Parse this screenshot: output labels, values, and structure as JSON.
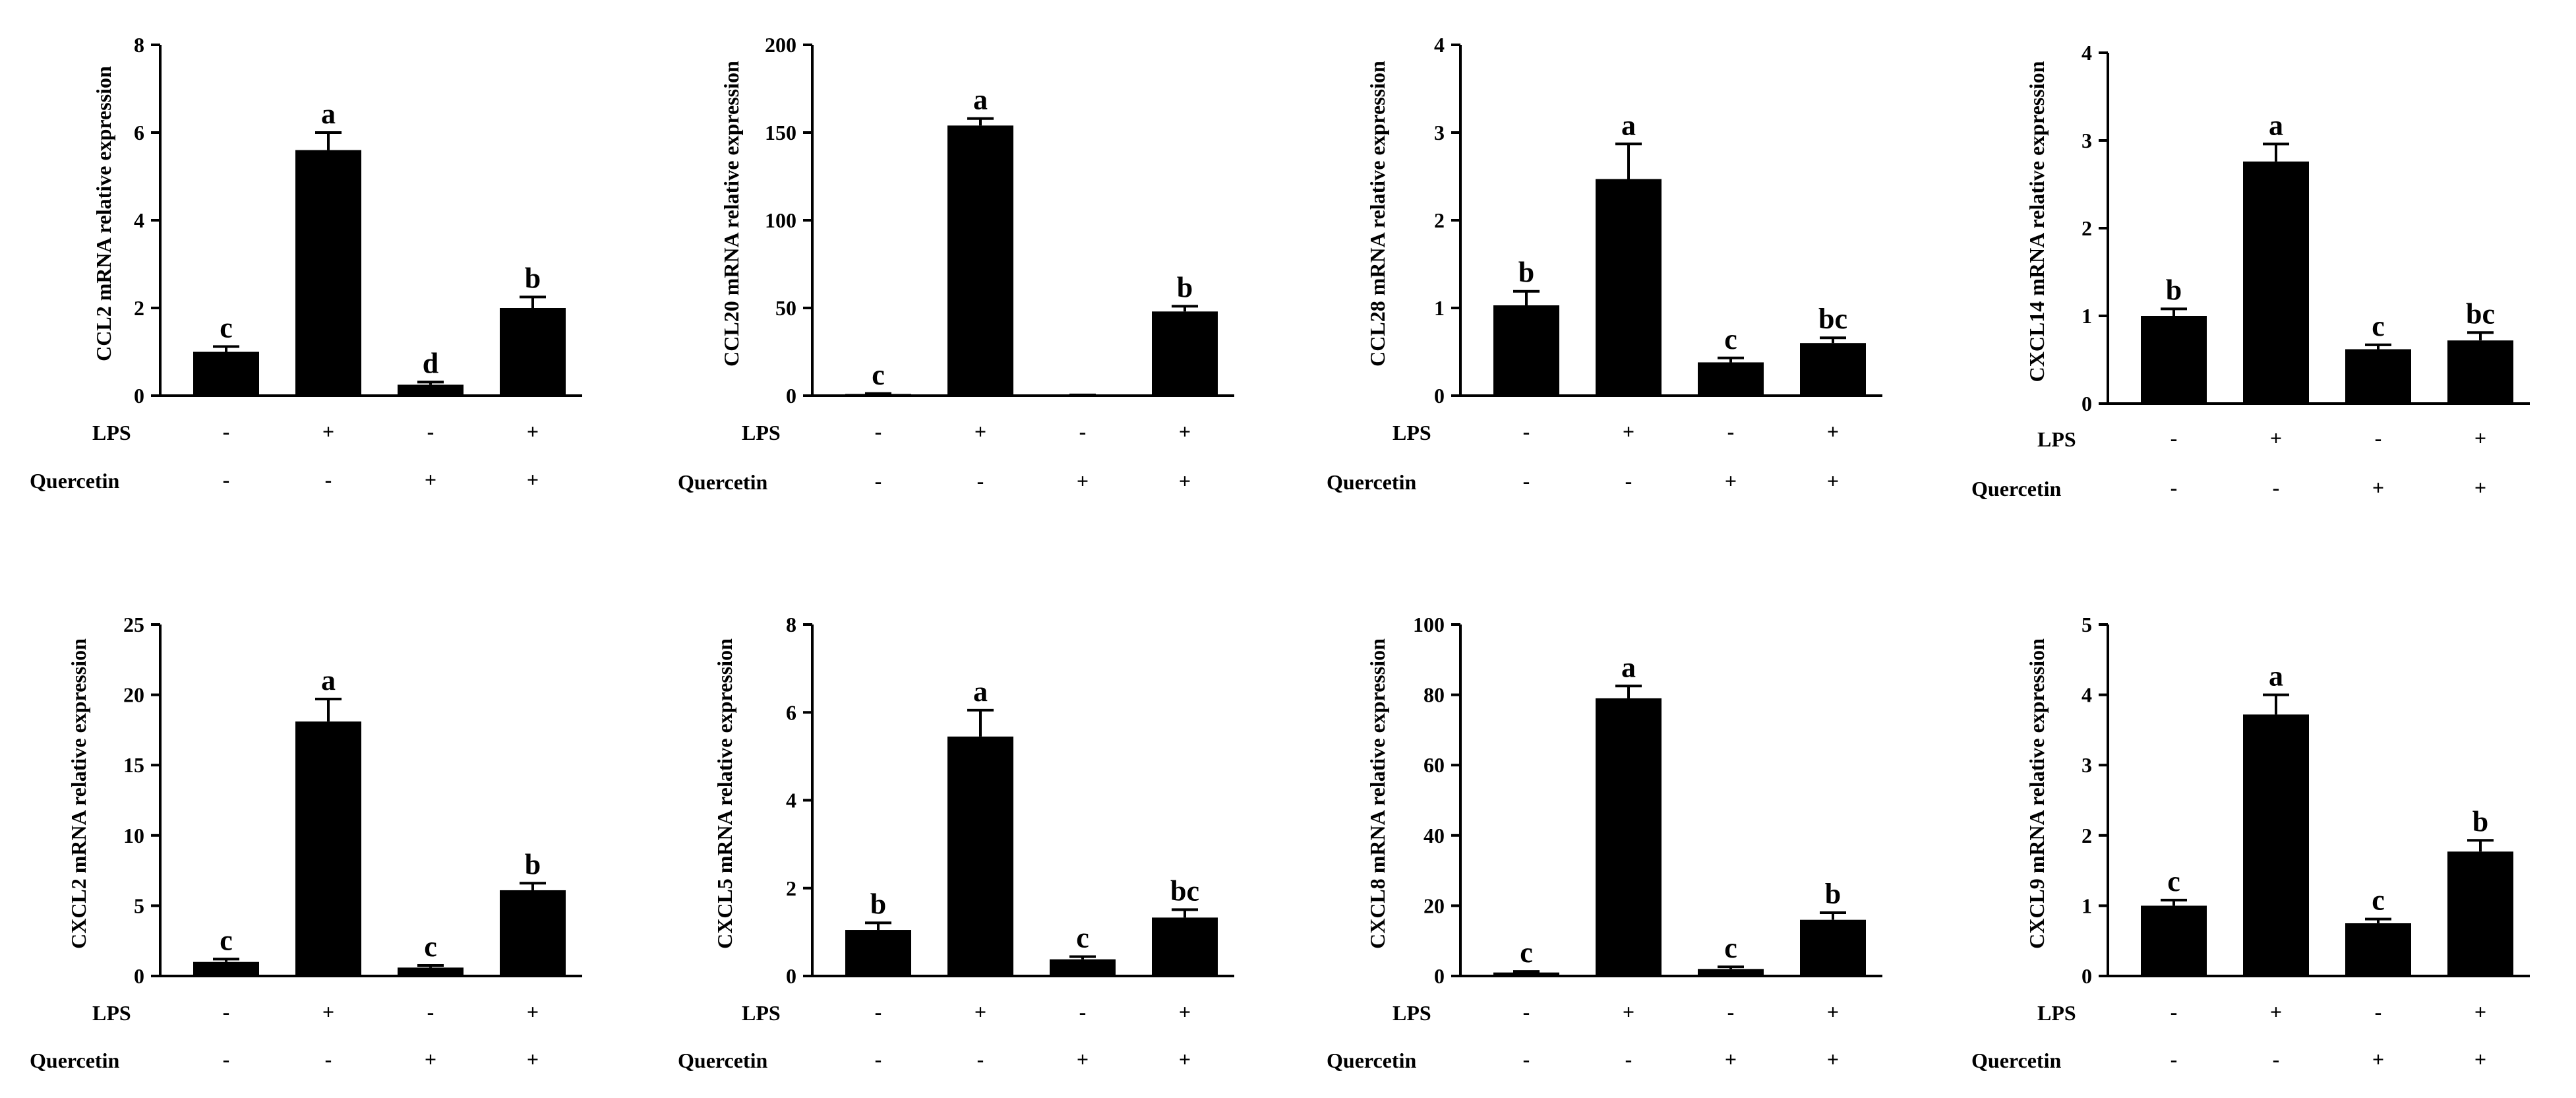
{
  "chart_data": [
    {
      "type": "bar",
      "ylabel": "CCL2 mRNA relative expression",
      "ylim": [
        0,
        8
      ],
      "yticks": [
        0,
        2,
        4,
        6,
        8
      ],
      "values": [
        1.0,
        5.6,
        0.25,
        2.0
      ],
      "errors": [
        0.12,
        0.4,
        0.06,
        0.25
      ],
      "letters": [
        "c",
        "a",
        "d",
        "b"
      ],
      "lps": [
        "-",
        "+",
        "-",
        "+"
      ],
      "quercetin": [
        "-",
        "-",
        "+",
        "+"
      ]
    },
    {
      "type": "bar",
      "ylabel": "CCL20 mRNA relative expression",
      "ylim": [
        0,
        200
      ],
      "yticks": [
        0,
        50,
        100,
        150,
        200
      ],
      "values": [
        1.0,
        154,
        0.3,
        48
      ],
      "errors": [
        0.2,
        4,
        0.1,
        3
      ],
      "letters": [
        "c",
        "a",
        "",
        "b"
      ],
      "lps": [
        "-",
        "+",
        "-",
        "+"
      ],
      "quercetin": [
        "-",
        "-",
        "+",
        "+"
      ]
    },
    {
      "type": "bar",
      "ylabel": "CCL28 mRNA relative expression",
      "ylim": [
        0,
        4
      ],
      "yticks": [
        0,
        1,
        2,
        3,
        4
      ],
      "values": [
        1.03,
        2.47,
        0.38,
        0.6
      ],
      "errors": [
        0.16,
        0.4,
        0.05,
        0.06
      ],
      "letters": [
        "b",
        "a",
        "c",
        "bc"
      ],
      "lps": [
        "-",
        "+",
        "-",
        "+"
      ],
      "quercetin": [
        "-",
        "-",
        "+",
        "+"
      ]
    },
    {
      "type": "bar",
      "ylabel": "CXCL14 mRNA relative expression",
      "ylim": [
        0,
        4
      ],
      "yticks": [
        0,
        1,
        2,
        3,
        4
      ],
      "values": [
        1.0,
        2.76,
        0.62,
        0.72
      ],
      "errors": [
        0.08,
        0.2,
        0.05,
        0.09
      ],
      "letters": [
        "b",
        "a",
        "c",
        "bc"
      ],
      "lps": [
        "-",
        "+",
        "-",
        "+"
      ],
      "quercetin": [
        "-",
        "-",
        "+",
        "+"
      ]
    },
    {
      "type": "bar",
      "ylabel": "CXCL2 mRNA relative expression",
      "ylim": [
        0,
        25
      ],
      "yticks": [
        0,
        5,
        10,
        15,
        20,
        25
      ],
      "values": [
        1.0,
        18.1,
        0.6,
        6.1
      ],
      "errors": [
        0.2,
        1.6,
        0.15,
        0.5
      ],
      "letters": [
        "c",
        "a",
        "c",
        "b"
      ],
      "lps": [
        "-",
        "+",
        "-",
        "+"
      ],
      "quercetin": [
        "-",
        "-",
        "+",
        "+"
      ]
    },
    {
      "type": "bar",
      "ylabel": "CXCL5 mRNA relative expression",
      "ylim": [
        0,
        8
      ],
      "yticks": [
        0,
        2,
        4,
        6,
        8
      ],
      "values": [
        1.05,
        5.45,
        0.38,
        1.33
      ],
      "errors": [
        0.16,
        0.6,
        0.06,
        0.18
      ],
      "letters": [
        "b",
        "a",
        "c",
        "bc"
      ],
      "lps": [
        "-",
        "+",
        "-",
        "+"
      ],
      "quercetin": [
        "-",
        "-",
        "+",
        "+"
      ]
    },
    {
      "type": "bar",
      "ylabel": "CXCL8 mRNA relative expression",
      "ylim": [
        0,
        100
      ],
      "yticks": [
        0,
        20,
        40,
        60,
        80,
        100
      ],
      "values": [
        1.0,
        79,
        2.0,
        16
      ],
      "errors": [
        0.3,
        3.5,
        0.6,
        2.0
      ],
      "letters": [
        "c",
        "a",
        "c",
        "b"
      ],
      "lps": [
        "-",
        "+",
        "-",
        "+"
      ],
      "quercetin": [
        "-",
        "-",
        "+",
        "+"
      ]
    },
    {
      "type": "bar",
      "ylabel": "CXCL9 mRNA relative expression",
      "ylim": [
        0,
        5
      ],
      "yticks": [
        0,
        1,
        2,
        3,
        4,
        5
      ],
      "values": [
        1.0,
        3.72,
        0.75,
        1.77
      ],
      "errors": [
        0.08,
        0.28,
        0.06,
        0.16
      ],
      "letters": [
        "c",
        "a",
        "c",
        "b"
      ],
      "lps": [
        "-",
        "+",
        "-",
        "+"
      ],
      "quercetin": [
        "-",
        "-",
        "+",
        "+"
      ]
    }
  ],
  "row_labels": {
    "lps": "LPS",
    "quercetin": "Quercetin"
  }
}
